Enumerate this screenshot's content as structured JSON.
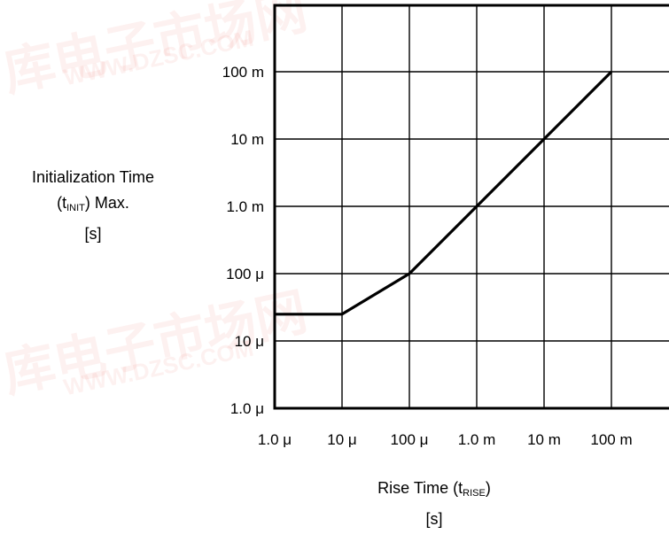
{
  "chart_data": {
    "type": "line",
    "xscale": "log",
    "yscale": "log",
    "grid": true,
    "xlim": [
      1e-06,
      1
    ],
    "ylim": [
      1e-06,
      1
    ],
    "xticks": [
      1e-06,
      1e-05,
      0.0001,
      0.001,
      0.01,
      0.1
    ],
    "xtick_labels": [
      "1.0 μ",
      "10 μ",
      "100 μ",
      "1.0 m",
      "10 m",
      "100 m"
    ],
    "yticks": [
      1e-06,
      1e-05,
      0.0001,
      0.001,
      0.01,
      0.1
    ],
    "ytick_labels": [
      "1.0 μ",
      "10 μ",
      "100 μ",
      "1.0 m",
      "10 m",
      "100 m"
    ],
    "series": [
      {
        "x": [
          1e-06,
          1e-05,
          0.0001,
          0.001,
          0.01,
          0.1
        ],
        "y": [
          2.5e-05,
          2.5e-05,
          0.0001,
          0.001,
          0.01,
          0.1
        ]
      }
    ],
    "ylabel": {
      "line1": "Initialization Time",
      "line2_open": "(t",
      "line2_sub": "INIT",
      "line2_close": ") Max.",
      "line3": "[s]"
    },
    "xlabel": {
      "line1_open": "Rise Time (t",
      "line1_sub": "RISE",
      "line1_close": ")",
      "line2": "[s]"
    }
  },
  "watermark": {
    "cn": "库电子市场网",
    "url": "WWW.DZSC.COM"
  }
}
